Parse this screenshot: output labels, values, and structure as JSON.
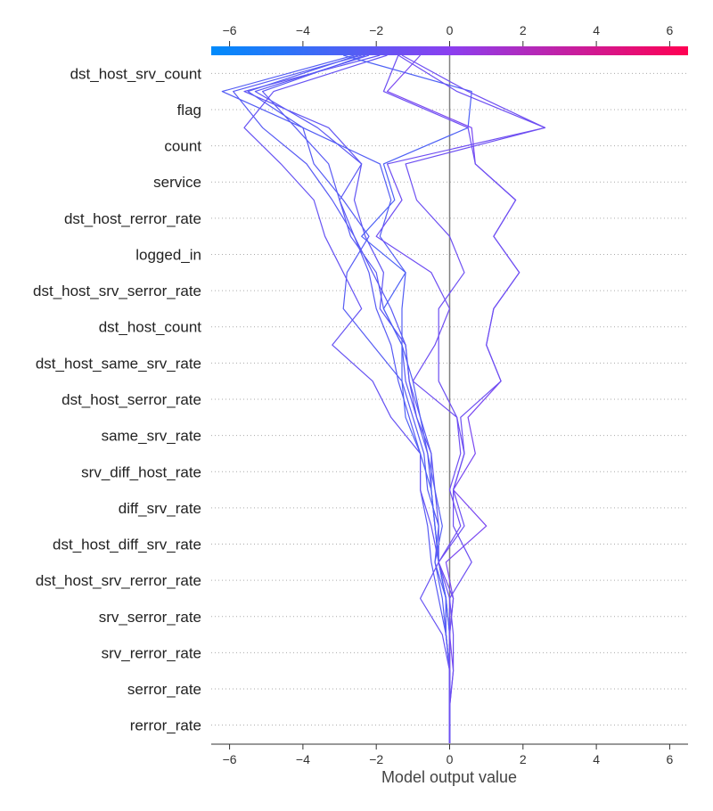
{
  "chart_data": {
    "type": "line",
    "subtype": "shap-decision-plot",
    "xlabel": "Model output value",
    "xlim": [
      -6.5,
      6.5
    ],
    "x_ticks": [
      -6,
      -4,
      -2,
      0,
      2,
      4,
      6
    ],
    "x_tick_labels": [
      "−6",
      "−4",
      "−2",
      "0",
      "2",
      "4",
      "6"
    ],
    "base_value": 0,
    "features": [
      "rerror_rate",
      "serror_rate",
      "srv_rerror_rate",
      "srv_serror_rate",
      "dst_host_srv_rerror_rate",
      "dst_host_diff_srv_rate",
      "diff_srv_rate",
      "srv_diff_host_rate",
      "same_srv_rate",
      "dst_host_serror_rate",
      "dst_host_same_srv_rate",
      "dst_host_count",
      "dst_host_srv_serror_rate",
      "logged_in",
      "dst_host_rerror_rate",
      "service",
      "count",
      "flag",
      "dst_host_srv_count"
    ],
    "colorbar": {
      "min": -6.5,
      "max": 6.5,
      "low_color": "#008bfb",
      "high_color": "#ff0052"
    },
    "grid": "dotted-horizontal",
    "series": [
      {
        "values": [
          0,
          0,
          0,
          -0.1,
          -0.3,
          -0.3,
          -0.4,
          -0.5,
          -0.9,
          -1.1,
          -1.2,
          -1.9,
          -1.8,
          -2.3,
          -2.6,
          -2.4,
          -3.3,
          -5.6,
          -1.9
        ]
      },
      {
        "values": [
          0,
          0,
          -0.1,
          -0.1,
          -0.3,
          -0.4,
          -0.5,
          -0.5,
          -0.8,
          -1.1,
          -1.2,
          -1.6,
          -2.1,
          -2.6,
          -3.0,
          -2.4,
          -3.6,
          -5.3,
          -2.2
        ]
      },
      {
        "values": [
          0,
          0,
          -0.1,
          -0.2,
          -0.4,
          -0.2,
          -0.4,
          -0.6,
          -0.8,
          -1.0,
          -1.3,
          -1.3,
          -1.2,
          -1.9,
          -1.6,
          -1.9,
          -4.0,
          -6.2,
          -2.6
        ]
      },
      {
        "values": [
          0,
          0,
          -0.1,
          -0.1,
          -0.3,
          -0.4,
          -0.5,
          -0.6,
          -0.9,
          -1.2,
          -1.3,
          -1.8,
          -2.0,
          -2.7,
          -3.0,
          -3.3,
          -4.2,
          -5.1,
          -2.3
        ]
      },
      {
        "values": [
          0,
          0,
          -0.1,
          -0.3,
          -0.5,
          -0.6,
          -0.8,
          -0.8,
          -1.1,
          -1.4,
          -1.6,
          -2.0,
          -2.2,
          -2.6,
          -3.2,
          -3.9,
          -5.1,
          -5.9,
          -2.4
        ]
      },
      {
        "values": [
          0,
          0,
          -0.1,
          -0.1,
          -0.4,
          -0.3,
          -0.6,
          -0.7,
          -1.0,
          -1.3,
          -2.1,
          -2.9,
          -2.8,
          -2.2,
          -2.9,
          -3.7,
          -4.0,
          -5.5,
          -2.5
        ]
      },
      {
        "values": [
          0,
          0,
          -0.2,
          -0.8,
          -0.3,
          -0.5,
          -0.8,
          -0.8,
          -1.6,
          -2.1,
          -3.2,
          -2.4,
          -2.9,
          -3.4,
          -3.7,
          -4.6,
          -5.6,
          -4.8,
          -1.7
        ]
      },
      {
        "values": [
          0,
          0,
          0,
          -0.1,
          -0.3,
          -0.4,
          -0.5,
          -0.8,
          -1.2,
          -1.3,
          -1.3,
          -1.8,
          -1.2,
          -2.4,
          -1.5,
          -1.8,
          0.5,
          0.6,
          -2.9
        ]
      },
      {
        "values": [
          0,
          0.1,
          0,
          0.1,
          -0.1,
          1.0,
          0.1,
          0.7,
          0.5,
          1.4,
          1.0,
          1.2,
          1.9,
          1.2,
          1.8,
          0.7,
          0.6,
          -1.7,
          -0.8
        ]
      },
      {
        "values": [
          0,
          0.1,
          0.1,
          0,
          0.6,
          0.1,
          0.1,
          0.4,
          0.3,
          1.4,
          1.0,
          1.2,
          1.9,
          1.2,
          1.8,
          0.7,
          0.5,
          -1.8,
          -1.4
        ]
      },
      {
        "values": [
          0,
          0,
          0,
          0,
          -0.3,
          0.4,
          0.1,
          0.4,
          0.2,
          -0.3,
          -0.3,
          -0.3,
          0.4,
          0.0,
          -0.9,
          -1.2,
          2.6,
          0.2,
          -1.4
        ]
      },
      {
        "values": [
          0,
          0,
          0,
          0.1,
          -0.3,
          0.3,
          0.0,
          0.3,
          0.2,
          -1.0,
          -0.4,
          0.0,
          -0.5,
          -2.0,
          -1.3,
          -1.7,
          2.6,
          0.5,
          -1.3
        ]
      }
    ]
  }
}
